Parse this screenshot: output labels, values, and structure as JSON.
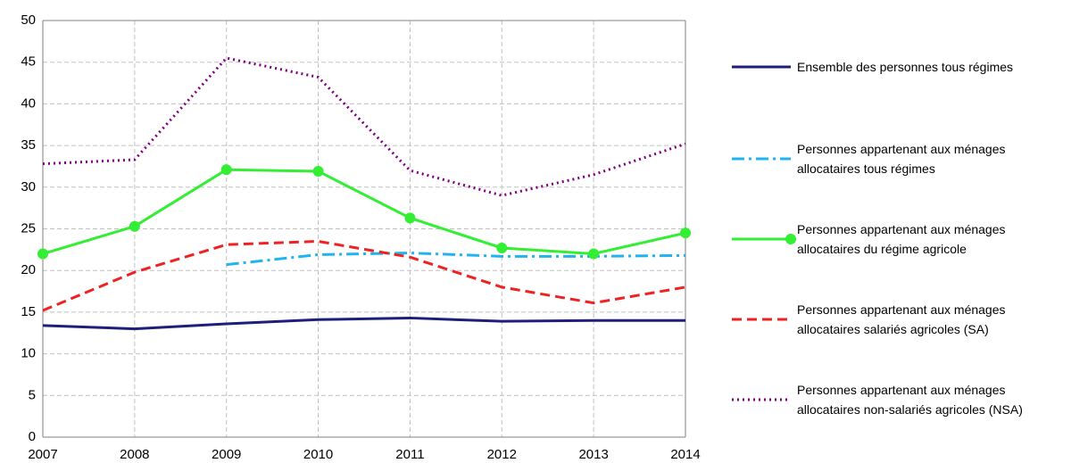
{
  "chart_data": {
    "type": "line",
    "x": [
      2007,
      2008,
      2009,
      2010,
      2011,
      2012,
      2013,
      2014
    ],
    "xlim": [
      2007,
      2014
    ],
    "xticks": [
      2007,
      2008,
      2009,
      2010,
      2011,
      2012,
      2013,
      2014
    ],
    "ylim": [
      0,
      50
    ],
    "yticks": [
      0,
      5,
      10,
      15,
      20,
      25,
      30,
      35,
      40,
      45,
      50
    ],
    "grid": true,
    "legend": "right",
    "series": [
      {
        "name": "Ensemble des personnes tous régimes",
        "color": "#1f1f7a",
        "style": "solid",
        "values": [
          13.4,
          13.0,
          13.6,
          14.1,
          14.3,
          13.9,
          14.0,
          14.0
        ]
      },
      {
        "name": "Personnes appartenant aux ménages allocataires tous régimes",
        "color": "#1fb4f0",
        "style": "dashdot",
        "values": [
          null,
          null,
          20.7,
          21.9,
          22.1,
          21.7,
          21.7,
          21.8
        ]
      },
      {
        "name": "Personnes appartenant aux ménages allocataires du régime agricole",
        "color": "#33ee33",
        "style": "solid",
        "marker": "circle",
        "values": [
          22.0,
          25.3,
          32.1,
          31.9,
          26.3,
          22.7,
          22.0,
          24.5
        ]
      },
      {
        "name": "Personnes appartenant aux ménages allocataires salariés agricoles (SA)",
        "color": "#ee2222",
        "style": "dashed",
        "values": [
          15.2,
          19.8,
          23.1,
          23.5,
          21.6,
          18.0,
          16.1,
          18.0
        ]
      },
      {
        "name": "Personnes appartenant aux ménages allocataires non-salariés agricoles (NSA)",
        "color": "#800080",
        "style": "dotted",
        "values": [
          32.8,
          33.3,
          45.5,
          43.2,
          32.0,
          29.0,
          31.5,
          35.2
        ]
      }
    ]
  }
}
